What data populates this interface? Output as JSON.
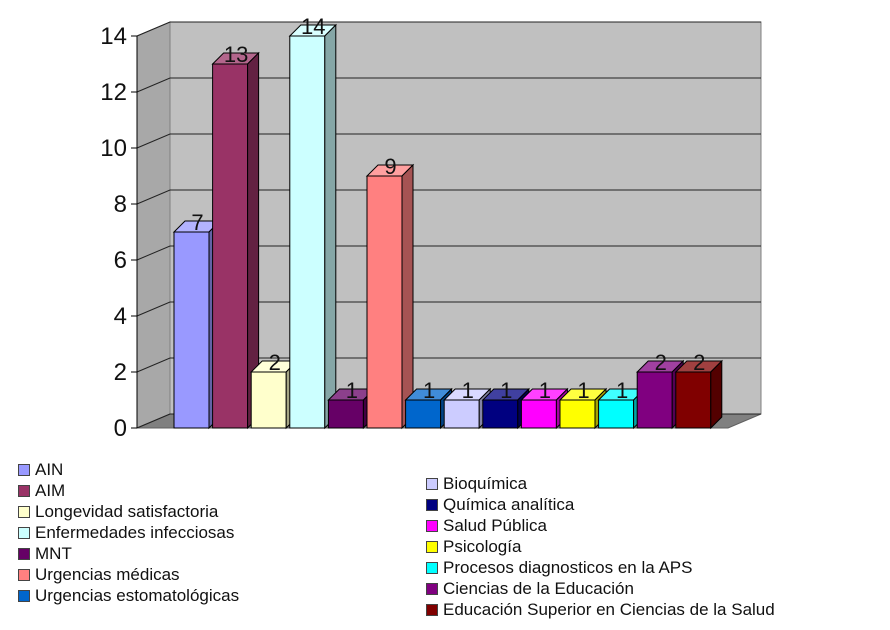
{
  "chart_data": {
    "type": "bar",
    "title": "",
    "xlabel": "",
    "ylabel": "",
    "ylim": [
      0,
      14
    ],
    "yticks": [
      0,
      2,
      4,
      6,
      8,
      10,
      12,
      14
    ],
    "grid": true,
    "legend_position": "bottom",
    "series": [
      {
        "name": "AIN",
        "value": 7,
        "label": "7",
        "color": "#9999ff"
      },
      {
        "name": "AIM",
        "value": 13,
        "label": "13",
        "color": "#993366"
      },
      {
        "name": "Longevidad satisfactoria",
        "value": 2,
        "label": "2",
        "color": "#ffffcc"
      },
      {
        "name": "Enfermedades infecciosas",
        "value": 14,
        "label": "14",
        "color": "#ccffff"
      },
      {
        "name": "MNT",
        "value": 1,
        "label": "1",
        "color": "#660066"
      },
      {
        "name": "Urgencias médicas",
        "value": 9,
        "label": "9",
        "color": "#ff8080"
      },
      {
        "name": "Urgencias estomatológicas",
        "value": 1,
        "label": "1",
        "color": "#0066cc"
      },
      {
        "name": "Bioquímica",
        "value": 1,
        "label": "1",
        "color": "#ccccff"
      },
      {
        "name": "Química analítica",
        "value": 1,
        "label": "1",
        "color": "#000080"
      },
      {
        "name": "Salud Pública",
        "value": 1,
        "label": "1",
        "color": "#ff00ff"
      },
      {
        "name": "Psicología",
        "value": 1,
        "label": "1",
        "color": "#ffff00"
      },
      {
        "name": "Procesos diagnosticos en la APS",
        "value": 1,
        "label": "1",
        "color": "#00ffff"
      },
      {
        "name": "Ciencias de la Educación",
        "value": 2,
        "label": "2",
        "color": "#800080"
      },
      {
        "name": "Educación Superior en Ciencias de la Salud",
        "value": 2,
        "label": "2",
        "color": "#800000"
      }
    ]
  }
}
